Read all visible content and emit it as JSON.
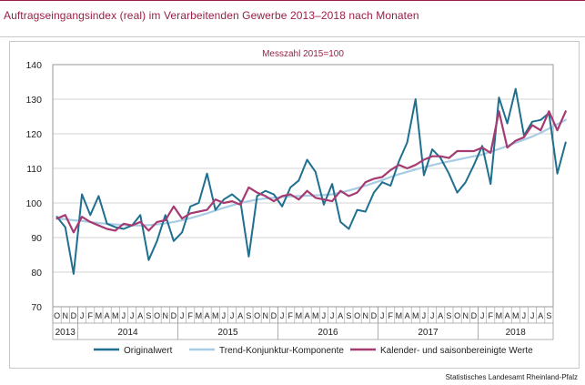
{
  "header": {
    "title": "Auftragseingangsindex (real) im Verarbeitenden Gewerbe 2013–2018 nach Monaten"
  },
  "footer": {
    "source": "Statistisches Landesamt Rheinland-Pfalz"
  },
  "colors": {
    "brand": "#9a1f44",
    "original": "#1f6f8f",
    "trend": "#a8cce4",
    "adjusted": "#a63a72",
    "grid": "#d3d3d3"
  },
  "chart_data": {
    "type": "line",
    "subtitle": "Messzahl 2015=100",
    "ylim": [
      70,
      140
    ],
    "yticks": [
      70,
      80,
      90,
      100,
      110,
      120,
      130,
      140
    ],
    "grid": true,
    "legend_position": "bottom",
    "month_labels": [
      "O",
      "N",
      "D",
      "J",
      "F",
      "M",
      "A",
      "M",
      "J",
      "J",
      "A",
      "S",
      "O",
      "N",
      "D",
      "J",
      "F",
      "M",
      "A",
      "M",
      "J",
      "J",
      "A",
      "S",
      "O",
      "N",
      "D",
      "J",
      "F",
      "M",
      "A",
      "M",
      "J",
      "J",
      "A",
      "S",
      "O",
      "N",
      "D",
      "J",
      "F",
      "M",
      "A",
      "M",
      "J",
      "J",
      "A",
      "S",
      "O",
      "N",
      "D",
      "J",
      "F",
      "M",
      "A",
      "M",
      "J",
      "J",
      "A",
      "S"
    ],
    "years": [
      {
        "label": "2013",
        "months": 3
      },
      {
        "label": "2014",
        "months": 12
      },
      {
        "label": "2015",
        "months": 12
      },
      {
        "label": "2016",
        "months": 12
      },
      {
        "label": "2017",
        "months": 12
      },
      {
        "label": "2018",
        "months": 9
      }
    ],
    "series": [
      {
        "name": "Originalwert",
        "color": "#1f6f8f",
        "values": [
          96,
          93,
          79.5,
          102.5,
          96.5,
          102,
          94,
          93,
          92.5,
          93.5,
          96.5,
          83.5,
          89,
          96.5,
          89,
          91.5,
          99,
          100,
          108.5,
          98,
          101,
          102.5,
          100.5,
          84.5,
          102,
          103.5,
          102.5,
          99,
          104.5,
          106.5,
          112.5,
          109,
          99.5,
          105.5,
          94.5,
          92.5,
          98,
          97.5,
          103,
          106,
          105,
          112,
          117.5,
          130,
          108,
          115.5,
          113,
          108.5,
          103,
          106,
          111,
          116.5,
          105.5,
          130.5,
          123,
          133,
          119.5,
          123.5,
          124,
          126,
          108.5,
          117.5
        ]
      },
      {
        "name": "Trend-Konjunktur-Komponente",
        "color": "#a8cce4",
        "values": [
          95.5,
          95.3,
          95,
          94.8,
          94.5,
          94.2,
          94,
          93.8,
          93.6,
          93.5,
          93.5,
          93.6,
          93.8,
          94.1,
          94.5,
          95,
          95.6,
          96.3,
          97,
          97.8,
          98.6,
          99.3,
          100,
          100.5,
          101,
          101.3,
          101.5,
          101.7,
          101.9,
          102,
          102.1,
          102.2,
          102.3,
          102.5,
          103,
          103.6,
          104.3,
          105,
          105.8,
          106.6,
          107.5,
          108.3,
          109,
          109.7,
          110.3,
          110.9,
          111.5,
          112,
          112.5,
          113,
          113.5,
          114,
          114.8,
          115.6,
          116.5,
          117.4,
          118.3,
          119.2,
          120.3,
          121.5,
          122.8,
          124
        ]
      },
      {
        "name": "Kalender- und saisonbereinigte Werte",
        "color": "#a63a72",
        "values": [
          95.5,
          96.5,
          91.5,
          96,
          94.5,
          93.5,
          92.5,
          92,
          94,
          93.5,
          94.5,
          92,
          94.5,
          95,
          99,
          95.5,
          97,
          97.5,
          98,
          101,
          100,
          100.5,
          99.5,
          104.5,
          103,
          102,
          100.5,
          102,
          102.5,
          101,
          103.5,
          101.5,
          101,
          100.5,
          103.5,
          102,
          103,
          106,
          107,
          107.5,
          109.5,
          111,
          110,
          111,
          112.5,
          113.5,
          113.5,
          113,
          115,
          115,
          115,
          116,
          114.5,
          126.5,
          116,
          118,
          119,
          122.5,
          121,
          126.5,
          121,
          126.5
        ]
      }
    ]
  }
}
